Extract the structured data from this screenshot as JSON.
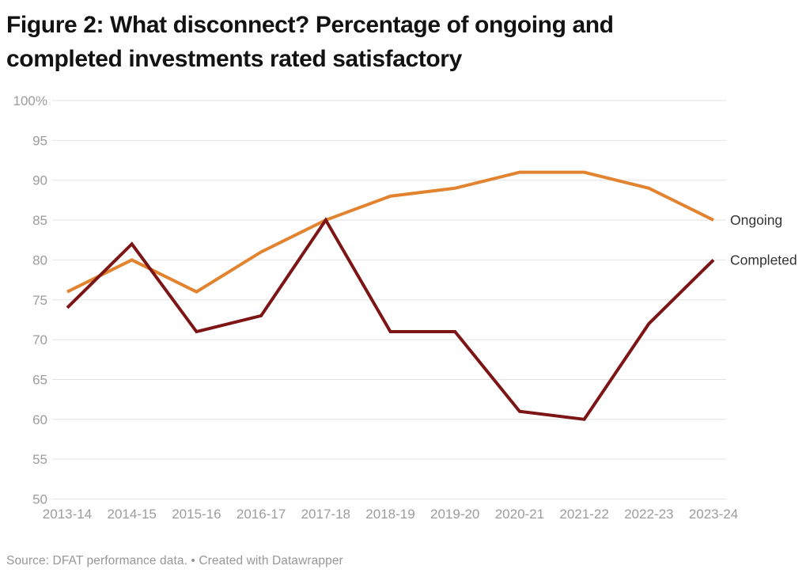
{
  "header": {
    "title_line1": "Figure 2: What disconnect? Percentage of ongoing and",
    "title_line2": "completed investments rated satisfactory"
  },
  "chart_data": {
    "type": "line",
    "title": "Figure 2: What disconnect? Percentage of ongoing and completed investments rated satisfactory",
    "categories": [
      "2013-14",
      "2014-15",
      "2015-16",
      "2016-17",
      "2017-18",
      "2018-19",
      "2019-20",
      "2020-21",
      "2021-22",
      "2022-23",
      "2023-24"
    ],
    "series": [
      {
        "name": "Ongoing",
        "color": "#E2842F",
        "values": [
          76,
          80,
          76,
          81,
          85,
          88,
          89,
          91,
          91,
          89,
          85
        ]
      },
      {
        "name": "Completed",
        "color": "#7D1416",
        "values": [
          74,
          82,
          71,
          73,
          85,
          71,
          71,
          61,
          60,
          72,
          80
        ]
      }
    ],
    "ylim": [
      50,
      100
    ],
    "ytick_values": [
      100,
      95,
      90,
      85,
      80,
      75,
      70,
      65,
      60,
      55,
      50
    ],
    "ytick_labels": [
      "100%",
      "95",
      "90",
      "85",
      "80",
      "75",
      "70",
      "65",
      "60",
      "55",
      "50"
    ],
    "xlabel": "",
    "ylabel": "",
    "grid": "horizontal",
    "legend_position": "right-of-line-ends",
    "unit": "%"
  },
  "footer": {
    "source": "Source: DFAT performance data. • Created with Datawrapper"
  },
  "colors": {
    "background": "#ffffff",
    "title_text": "#121212",
    "gridline": "#E2E2E2",
    "axis_label": "#9C9C9C",
    "series_label": "#333333",
    "source_text": "#979797",
    "ongoing_line": "#E2842F",
    "completed_line": "#7D1416"
  }
}
